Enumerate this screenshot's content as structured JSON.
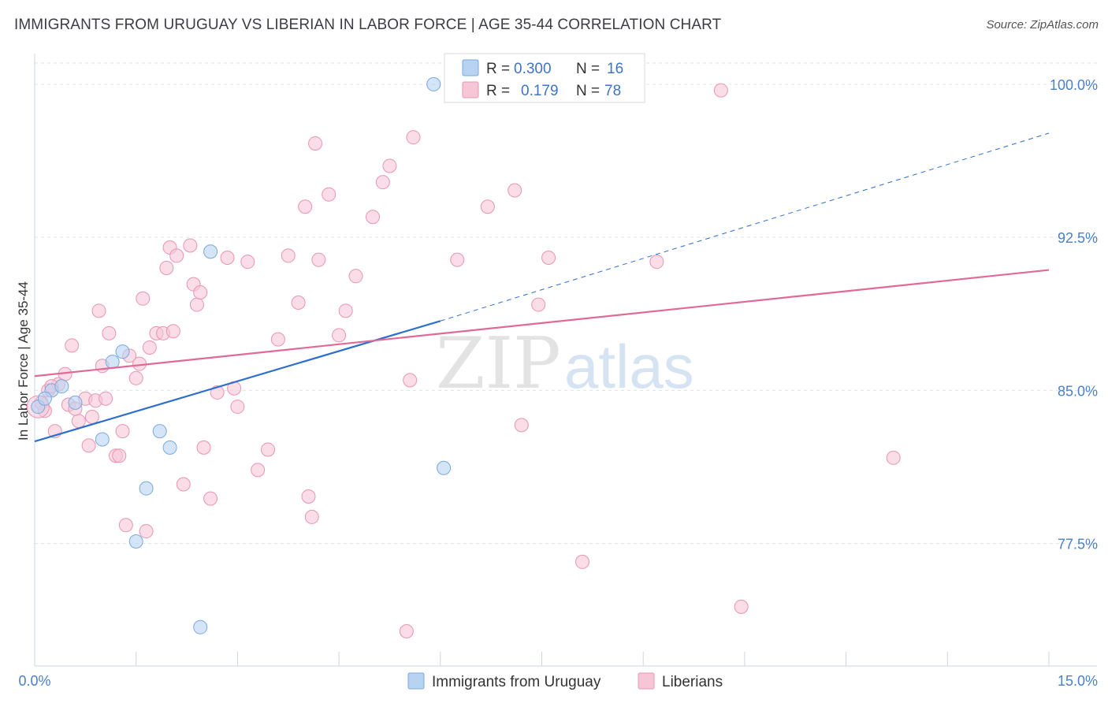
{
  "title": "IMMIGRANTS FROM URUGUAY VS LIBERIAN IN LABOR FORCE | AGE 35-44 CORRELATION CHART",
  "source": "Source: ZipAtlas.com",
  "watermark": {
    "zip": "ZIP",
    "atlas": "atlas"
  },
  "colors": {
    "uruguay_fill": "#b8d3f2",
    "uruguay_stroke": "#7aa8de",
    "uruguay_line": "#2e6fcc",
    "liberian_fill": "#f7c6d6",
    "liberian_stroke": "#e895b2",
    "liberian_line": "#e06a96",
    "tick_label": "#4a7fc9",
    "grid": "#dde3ea"
  },
  "legend": {
    "rows": [
      {
        "r_label": "R = ",
        "r_value": "0.300",
        "n_label": "N = ",
        "n_value": "16"
      },
      {
        "r_label": "R = ",
        "r_value": "0.179",
        "n_label": "N = ",
        "n_value": "78"
      }
    ]
  },
  "chart_data": {
    "type": "scatter",
    "title": "IMMIGRANTS FROM URUGUAY VS LIBERIAN IN LABOR FORCE | AGE 35-44 CORRELATION CHART",
    "xlabel": "",
    "ylabel": "In Labor Force | Age 35-44",
    "xlim": [
      0,
      15
    ],
    "ylim": [
      71.5,
      101.5
    ],
    "x_tick_labels": [
      "0.0%",
      "15.0%"
    ],
    "y_ticks": [
      77.5,
      85.0,
      92.5,
      100.0
    ],
    "y_tick_labels": [
      "77.5%",
      "85.0%",
      "92.5%",
      "100.0%"
    ],
    "grid": "horizontal dashed",
    "legend_position": "top-center",
    "series": [
      {
        "name": "Immigrants from Uruguay",
        "R": 0.3,
        "N": 16,
        "points": [
          [
            0.05,
            84.2
          ],
          [
            0.25,
            85.0
          ],
          [
            0.4,
            85.2
          ],
          [
            0.6,
            84.4
          ],
          [
            1.15,
            86.4
          ],
          [
            1.3,
            86.9
          ],
          [
            1.0,
            82.6
          ],
          [
            1.85,
            83.0
          ],
          [
            2.0,
            82.2
          ],
          [
            1.65,
            80.2
          ],
          [
            1.5,
            77.6
          ],
          [
            2.6,
            91.8
          ],
          [
            5.9,
            100.0
          ],
          [
            6.05,
            81.2
          ],
          [
            2.45,
            73.4
          ],
          [
            0.15,
            84.6
          ]
        ],
        "trend": {
          "x0": 0.0,
          "y0": 82.5,
          "x1": 6.0,
          "y1": 88.4,
          "dash_to": [
            15.0,
            97.6
          ]
        }
      },
      {
        "name": "Liberians",
        "R": 0.179,
        "N": 78,
        "points": [
          [
            0.1,
            84.4
          ],
          [
            0.2,
            85.0
          ],
          [
            0.3,
            83.0
          ],
          [
            0.35,
            85.3
          ],
          [
            0.45,
            85.8
          ],
          [
            0.5,
            84.3
          ],
          [
            0.55,
            87.2
          ],
          [
            0.65,
            83.5
          ],
          [
            0.75,
            84.6
          ],
          [
            0.8,
            82.3
          ],
          [
            0.85,
            83.7
          ],
          [
            0.9,
            84.5
          ],
          [
            0.95,
            88.9
          ],
          [
            1.0,
            86.2
          ],
          [
            1.1,
            87.8
          ],
          [
            1.2,
            81.8
          ],
          [
            1.25,
            81.8
          ],
          [
            1.3,
            83.0
          ],
          [
            1.35,
            78.4
          ],
          [
            1.4,
            86.7
          ],
          [
            1.5,
            85.6
          ],
          [
            1.55,
            86.3
          ],
          [
            1.6,
            89.5
          ],
          [
            1.65,
            78.1
          ],
          [
            1.7,
            87.1
          ],
          [
            1.8,
            87.8
          ],
          [
            1.9,
            87.8
          ],
          [
            1.95,
            91.0
          ],
          [
            2.0,
            92.0
          ],
          [
            2.1,
            91.6
          ],
          [
            2.2,
            80.4
          ],
          [
            2.3,
            92.1
          ],
          [
            2.35,
            90.2
          ],
          [
            2.4,
            89.2
          ],
          [
            2.45,
            89.8
          ],
          [
            2.5,
            82.2
          ],
          [
            2.6,
            79.7
          ],
          [
            2.7,
            84.9
          ],
          [
            2.85,
            91.5
          ],
          [
            2.95,
            85.1
          ],
          [
            3.0,
            84.2
          ],
          [
            3.15,
            91.3
          ],
          [
            3.3,
            81.1
          ],
          [
            3.45,
            82.1
          ],
          [
            3.6,
            87.5
          ],
          [
            3.75,
            91.6
          ],
          [
            3.9,
            89.3
          ],
          [
            4.0,
            94.0
          ],
          [
            4.05,
            79.8
          ],
          [
            4.1,
            78.8
          ],
          [
            4.15,
            97.1
          ],
          [
            4.2,
            91.4
          ],
          [
            4.35,
            94.6
          ],
          [
            4.5,
            87.7
          ],
          [
            4.6,
            88.9
          ],
          [
            4.75,
            90.6
          ],
          [
            5.0,
            93.5
          ],
          [
            5.15,
            95.2
          ],
          [
            5.25,
            96.0
          ],
          [
            5.5,
            73.2
          ],
          [
            5.55,
            85.5
          ],
          [
            5.6,
            97.4
          ],
          [
            6.25,
            91.4
          ],
          [
            6.7,
            94.0
          ],
          [
            7.1,
            94.8
          ],
          [
            7.2,
            83.3
          ],
          [
            7.45,
            89.2
          ],
          [
            7.6,
            91.5
          ],
          [
            8.1,
            76.6
          ],
          [
            9.2,
            91.3
          ],
          [
            10.15,
            99.7
          ],
          [
            10.45,
            74.4
          ],
          [
            12.7,
            81.7
          ],
          [
            0.15,
            84.0
          ],
          [
            0.6,
            84.1
          ],
          [
            1.05,
            84.6
          ],
          [
            2.05,
            87.9
          ],
          [
            0.25,
            85.2
          ]
        ],
        "trend": {
          "x0": 0.0,
          "y0": 85.7,
          "x1": 15.0,
          "y1": 90.9
        }
      }
    ]
  },
  "bottom_legend": [
    {
      "label": "Immigrants from Uruguay"
    },
    {
      "label": "Liberians"
    }
  ]
}
